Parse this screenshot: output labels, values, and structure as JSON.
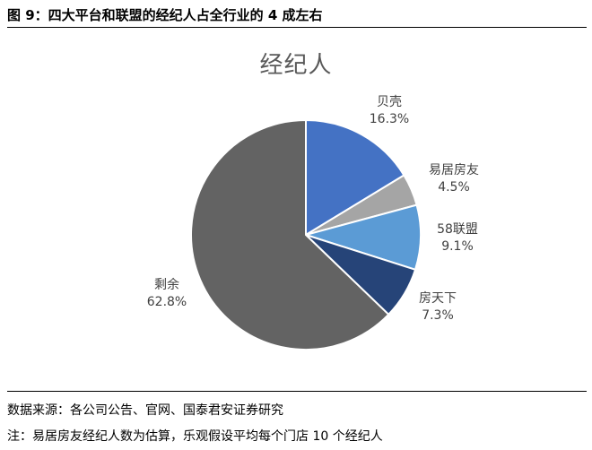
{
  "figure_title": "图 9：四大平台和联盟的经纪人占全行业的 4 成左右",
  "chart_data": {
    "type": "pie",
    "title": "经纪人",
    "slices": [
      {
        "label": "贝壳",
        "value": 16.3,
        "value_label": "16.3%",
        "color": "#4472c4"
      },
      {
        "label": "易居房友",
        "value": 4.5,
        "value_label": "4.5%",
        "color": "#a5a5a5"
      },
      {
        "label": "58联盟",
        "value": 9.1,
        "value_label": "9.1%",
        "color": "#5b9bd5"
      },
      {
        "label": "房天下",
        "value": 7.3,
        "value_label": "7.3%",
        "color": "#264478"
      },
      {
        "label": "剩余",
        "value": 62.8,
        "value_label": "62.8%",
        "color": "#636363"
      }
    ]
  },
  "footer": {
    "source": "数据来源：各公司公告、官网、国泰君安证券研究",
    "note": "注：易居房友经纪人数为估算，乐观假设平均每个门店 10 个经纪人"
  }
}
